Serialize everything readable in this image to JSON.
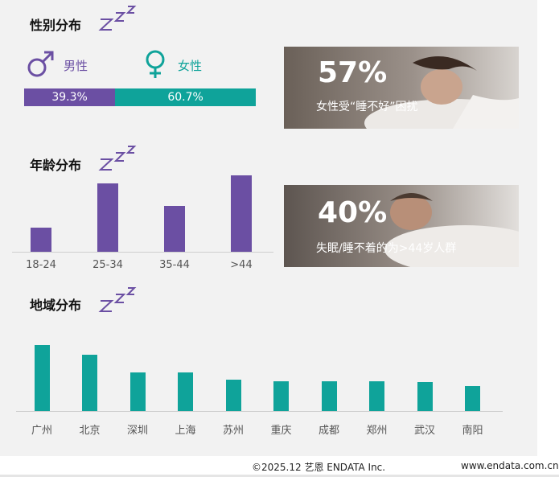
{
  "sections": {
    "gender_title": "性别分布",
    "age_title": "年龄分布",
    "region_title": "地域分布"
  },
  "gender": {
    "male_label": "男性",
    "female_label": "女性",
    "male_pct_label": "39.3%",
    "female_pct_label": "60.7%",
    "male_color": "#6b4fa3",
    "female_color": "#0fa39a"
  },
  "callouts": [
    {
      "big": "57%",
      "caption": "女性受“睡不好”困扰"
    },
    {
      "big": "40%",
      "caption": "失眠/睡不着的为>44岁人群"
    }
  ],
  "chart_data": [
    {
      "type": "bar",
      "title": "性别分布",
      "categories": [
        "男性",
        "女性"
      ],
      "values": [
        39.3,
        60.7
      ],
      "colors": [
        "#6b4fa3",
        "#0fa39a"
      ]
    },
    {
      "type": "bar",
      "title": "年龄分布",
      "categories": [
        "18-24",
        "25-34",
        "35-44",
        ">44"
      ],
      "values": [
        24,
        68,
        46,
        76
      ],
      "color": "#6b4fa3",
      "ylim": [
        0,
        80
      ],
      "grid": false
    },
    {
      "type": "bar",
      "title": "地域分布",
      "categories": [
        "广州",
        "北京",
        "深圳",
        "上海",
        "苏州",
        "重庆",
        "成都",
        "郑州",
        "武汉",
        "南阳"
      ],
      "values": [
        80,
        69,
        47,
        47,
        38,
        36,
        36,
        36,
        35,
        30
      ],
      "color": "#0fa39a",
      "ylim": [
        0,
        100
      ],
      "grid": false
    }
  ],
  "footer": {
    "copyright": "©2025.12  艺恩 ENDATA Inc.",
    "site": "www.endata.com.cn"
  }
}
